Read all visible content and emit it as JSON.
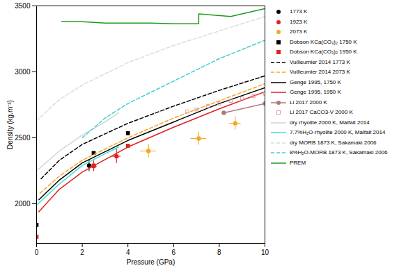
{
  "chart_data": {
    "type": "scatter",
    "x_label": "Pressure (GPa)",
    "y_label": "Density (kg.m⁻³)",
    "xlim": [
      0,
      10
    ],
    "xticks": [
      0,
      2,
      4,
      6,
      8,
      10
    ],
    "ylim": [
      1700,
      3500
    ],
    "yticks": [
      2000,
      2500,
      3000,
      3500
    ],
    "grid": false,
    "legend": "right",
    "series": [
      {
        "name": "1773 K",
        "type": "scatter",
        "color": "#000000",
        "marker": "circle",
        "x": [
          2.3
        ],
        "values": [
          2290
        ],
        "yerr": [
          45
        ]
      },
      {
        "name": "1923 K",
        "type": "scatter",
        "color": "#e02020",
        "marker": "circle",
        "x": [
          2.5,
          3.5
        ],
        "values": [
          2285,
          2360
        ],
        "xerr": [
          0.15,
          0.2
        ],
        "yerr": [
          40,
          55
        ]
      },
      {
        "name": "2073 K",
        "type": "scatter",
        "color": "#f5a623",
        "marker": "circle",
        "x": [
          4.9,
          7.1,
          8.7
        ],
        "values": [
          2400,
          2495,
          2610
        ],
        "xerr": [
          0.35,
          0.35,
          0.25
        ],
        "yerr": [
          50,
          50,
          50
        ]
      },
      {
        "name": "Dobson KCa(CO₃)₂ 1750 K",
        "type": "scatter",
        "color": "#000000",
        "marker": "square",
        "x": [
          0,
          2.5,
          4.0
        ],
        "values": [
          1840,
          2385,
          2535
        ]
      },
      {
        "name": "Dobson KCa(CO₃)₂ 1950 K",
        "type": "scatter",
        "color": "#e02020",
        "marker": "square",
        "x": [
          0,
          2.5,
          4.0
        ],
        "values": [
          1750,
          2290,
          2440
        ]
      },
      {
        "name": "Vuilleumier 2014 1773 K",
        "type": "line",
        "color": "#000000",
        "line_style": "dashed",
        "x": [
          0.2,
          1,
          2,
          4,
          6,
          8,
          10
        ],
        "values": [
          2190,
          2330,
          2450,
          2610,
          2740,
          2860,
          2970
        ]
      },
      {
        "name": "Vuilleumier 2014 2073 K",
        "type": "line",
        "color": "#f5a623",
        "line_style": "dashed",
        "x": [
          0.15,
          1,
          2,
          4,
          6,
          8,
          10
        ],
        "values": [
          2080,
          2210,
          2330,
          2500,
          2650,
          2780,
          2910
        ]
      },
      {
        "name": "Genge 1995, 1750 K",
        "type": "line",
        "color": "#000000",
        "line_style": "solid",
        "x": [
          0.1,
          1,
          2,
          4,
          6,
          8,
          10
        ],
        "values": [
          2030,
          2180,
          2310,
          2480,
          2620,
          2760,
          2880
        ]
      },
      {
        "name": "Genge 1995, 1950 K",
        "type": "line",
        "color": "#e02020",
        "line_style": "solid",
        "x": [
          0.1,
          1,
          2,
          4,
          6,
          8,
          10
        ],
        "values": [
          1940,
          2110,
          2240,
          2430,
          2580,
          2720,
          2850
        ]
      },
      {
        "name": "Li 2017 2000 K",
        "type": "line",
        "color": "#b07878",
        "line_style": "solid",
        "marker": "circle",
        "x": [
          8.2,
          10
        ],
        "values": [
          2690,
          2760
        ]
      },
      {
        "name": "Li 2017 CaCO3-V 2000 K",
        "type": "scatter",
        "color": "#d8a0a0",
        "marker": "open_square",
        "x": [
          6.6,
          7.0,
          7.5,
          8.0,
          8.5,
          9.0,
          9.5,
          10.0
        ],
        "values": [
          2700,
          2715,
          2740,
          2760,
          2780,
          2800,
          2815,
          2835
        ]
      },
      {
        "name": "dry rhyolite 2000 K, Malfait 2014",
        "type": "line",
        "color": "#d3d3d3",
        "line_style": "solid",
        "x": [
          0,
          1,
          2,
          3,
          3.6
        ],
        "values": [
          2250,
          2400,
          2520,
          2620,
          2690
        ]
      },
      {
        "name": "7.7%H₂O-rhyolite 2000 K, Malfait 2014",
        "type": "line",
        "color": "#40e0d0",
        "line_style": "solid",
        "x": [
          0,
          1,
          2,
          3,
          3.6
        ],
        "values": [
          1990,
          2150,
          2290,
          2380,
          2430
        ]
      },
      {
        "name": "dry MORB 1873 K, Sakamaki 2006",
        "type": "line",
        "color": "#dcdcdc",
        "line_style": "dashed",
        "x": [
          0,
          1,
          2,
          4,
          6,
          8,
          10
        ],
        "values": [
          2630,
          2790,
          2900,
          3070,
          3200,
          3310,
          3420
        ]
      },
      {
        "name": "8%H₂O-MORB 1873 K, Sakamaki 2006",
        "type": "line",
        "color": "#40d0d0",
        "line_style": "dashed",
        "x": [
          2,
          3,
          4,
          6,
          8,
          10
        ],
        "values": [
          2500,
          2650,
          2760,
          2930,
          3100,
          3240
        ]
      },
      {
        "name": "PREM",
        "type": "line",
        "color": "#1a9a1a",
        "line_style": "solid",
        "x": [
          1.1,
          2,
          3,
          5,
          6,
          7.1,
          7.1,
          8.5,
          10
        ],
        "values": [
          3380,
          3380,
          3370,
          3370,
          3365,
          3365,
          3440,
          3420,
          3480
        ]
      }
    ]
  }
}
